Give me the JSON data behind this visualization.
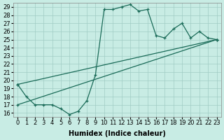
{
  "xlabel": "Humidex (Indice chaleur)",
  "bg_color": "#c8ece4",
  "line_color": "#1a6b58",
  "grid_color": "#a0ccc4",
  "xlim": [
    -0.5,
    23.5
  ],
  "ylim": [
    15.5,
    29.5
  ],
  "xticks": [
    0,
    1,
    2,
    3,
    4,
    5,
    6,
    7,
    8,
    9,
    10,
    11,
    12,
    13,
    14,
    15,
    16,
    17,
    18,
    19,
    20,
    21,
    22,
    23
  ],
  "yticks": [
    16,
    17,
    18,
    19,
    20,
    21,
    22,
    23,
    24,
    25,
    26,
    27,
    28,
    29
  ],
  "line1_x": [
    0,
    1,
    2,
    3,
    4,
    5,
    6,
    7,
    8,
    9,
    10,
    11,
    12,
    13,
    14,
    15,
    16,
    17,
    18,
    19,
    20,
    21,
    22,
    23
  ],
  "line1_y": [
    19.5,
    18.0,
    17.0,
    17.0,
    17.0,
    16.5,
    15.8,
    16.2,
    17.5,
    20.7,
    28.7,
    28.7,
    29.0,
    29.3,
    28.5,
    28.7,
    25.5,
    25.2,
    26.3,
    27.0,
    25.2,
    26.0,
    25.2,
    25.0
  ],
  "line2_x": [
    0,
    23
  ],
  "line2_y": [
    17.0,
    25.0
  ],
  "line3_x": [
    0,
    23
  ],
  "line3_y": [
    19.5,
    25.0
  ],
  "fontsize_label": 7,
  "fontsize_tick": 6
}
